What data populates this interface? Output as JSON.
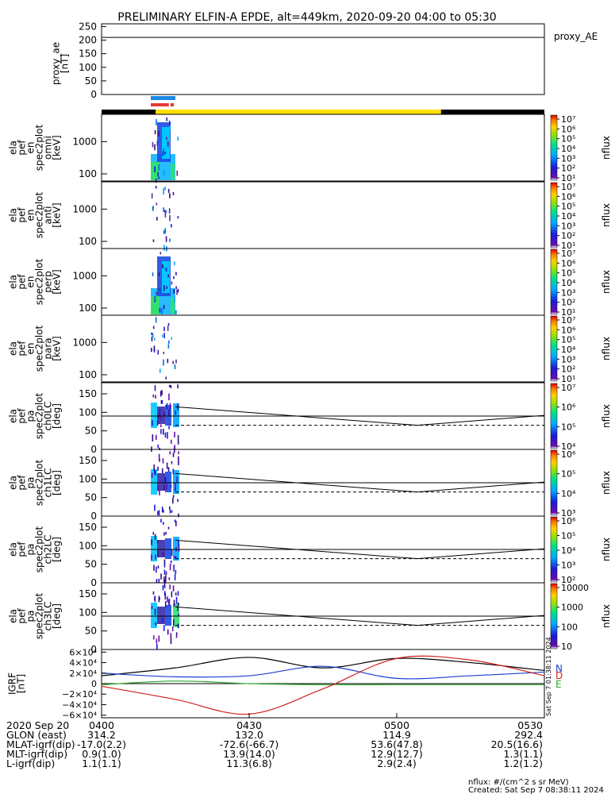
{
  "title": "PRELIMINARY ELFIN-A EPDE, alt=449km, 2020-09-20 04:00 to 05:30",
  "colors": {
    "black": "#000000",
    "yellow": "#ffe000",
    "blue_bar": "#1e88e5",
    "red_bar": "#e53935",
    "grf_x": "#1f3fd0",
    "grf_y": "#2ca82c",
    "grf_z": "#d02020"
  },
  "panels": {
    "proxy_ae": {
      "ylabel": [
        "proxy_ae",
        "[nT]"
      ],
      "legend": "proxy_AE",
      "yticks": [
        "250",
        "200",
        "150",
        "100",
        "50",
        "0"
      ]
    },
    "spec_energy": [
      {
        "ylabel": [
          "ela",
          "pef",
          "en",
          "spec2plot",
          "omni",
          "[keV]"
        ],
        "yticks": [
          "1000",
          "100"
        ]
      },
      {
        "ylabel": [
          "ela",
          "pef",
          "en",
          "spec2plot",
          "anti",
          "[keV]"
        ],
        "yticks": [
          "1000",
          "100"
        ]
      },
      {
        "ylabel": [
          "ela",
          "pef",
          "en",
          "spec2plot",
          "perp",
          "[keV]"
        ],
        "yticks": [
          "1000",
          "100"
        ]
      },
      {
        "ylabel": [
          "ela",
          "pef",
          "en",
          "spec2plot",
          "para",
          "[keV]"
        ],
        "yticks": [
          "1000",
          "100"
        ]
      }
    ],
    "spec_pitch": [
      {
        "ylabel": [
          "ela",
          "pef",
          "pa",
          "spec2plot",
          "ch0LC",
          "[deg]"
        ],
        "yticks": [
          "150",
          "100",
          "50",
          "0"
        ]
      },
      {
        "ylabel": [
          "ela",
          "pef",
          "pa",
          "spec2plot",
          "ch1LC",
          "[deg]"
        ],
        "yticks": [
          "150",
          "100",
          "50",
          "0"
        ]
      },
      {
        "ylabel": [
          "ela",
          "pef",
          "pa",
          "spec2plot",
          "ch2LC",
          "[deg]"
        ],
        "yticks": [
          "150",
          "100",
          "50",
          "0"
        ]
      },
      {
        "ylabel": [
          "ela",
          "pef",
          "pa",
          "spec2plot",
          "ch3LC",
          "[deg]"
        ],
        "yticks": [
          "150",
          "100",
          "50",
          "0"
        ]
      }
    ],
    "colorbars": [
      {
        "label": "nflux",
        "ticks": [
          "10⁷",
          "10⁶",
          "10⁵",
          "10⁴",
          "10³",
          "10²",
          "10¹"
        ]
      },
      {
        "label": "nflux",
        "ticks": [
          "10⁷",
          "10⁶",
          "10⁵",
          "10⁴",
          "10³",
          "10²",
          "10¹"
        ]
      },
      {
        "label": "nflux",
        "ticks": [
          "10⁷",
          "10⁶",
          "10⁵",
          "10⁴",
          "10³",
          "10²",
          "10¹"
        ]
      },
      {
        "label": "nflux",
        "ticks": [
          "10⁷",
          "10⁶",
          "10⁵",
          "10⁴",
          "10³",
          "10²",
          "10¹"
        ]
      },
      {
        "label": "nflux",
        "ticks": [
          "10⁷",
          "10⁶",
          "10⁵",
          "10⁴"
        ]
      },
      {
        "label": "nflux",
        "ticks": [
          "10⁶",
          "10⁵",
          "10⁴",
          "10³"
        ]
      },
      {
        "label": "nflux",
        "ticks": [
          "10⁶",
          "10⁵",
          "10⁴",
          "10³",
          "10²"
        ]
      },
      {
        "label": "nflux",
        "ticks": [
          "10000",
          "1000",
          "100",
          "10"
        ]
      }
    ],
    "grf": {
      "ylabel": [
        "IGRF",
        "[nT]"
      ],
      "yticks": [
        "6×10⁴",
        "4×10⁴",
        "2×10⁴",
        "0",
        "−2×10⁴",
        "−4×10⁴",
        "−6×10⁴"
      ],
      "side_label": "Sat Sep  7 01:38:11 2024",
      "comp_labels": [
        "N",
        "D",
        "E"
      ]
    }
  },
  "footer": {
    "rows": [
      {
        "label": "2020 Sep 20",
        "values": [
          "0400",
          "0430",
          "0500",
          "0530"
        ]
      },
      {
        "label": "GLON (east)",
        "values": [
          "314.2",
          "132.0",
          "114.9",
          "292.4"
        ]
      },
      {
        "label": "MLAT-igrf(dip)",
        "values": [
          "-17.0(2.2)",
          "-72.6(-66.7)",
          "53.6(47.8)",
          "20.5(16.6)"
        ]
      },
      {
        "label": "MLT-igrf(dip)",
        "values": [
          "0.9(1.0)",
          "13.9(14.0)",
          "12.9(12.7)",
          "1.3(1.1)"
        ]
      },
      {
        "label": "L-igrf(dip)",
        "values": [
          "1.1(1.1)",
          "11.3(6.8)",
          "2.9(2.4)",
          "1.2(1.2)"
        ]
      }
    ],
    "units_note": "nflux: #/(cm^2 s sr MeV)",
    "created": "Created: Sat Sep  7 08:38:11 2024"
  },
  "chart_data": {
    "type": "heatmap",
    "time_range": [
      "2020-09-20 04:00",
      "2020-09-20 05:30"
    ],
    "x_ticks": [
      "0400",
      "0430",
      "0500",
      "0530"
    ],
    "proxy_ae": {
      "ylim": [
        0,
        260
      ],
      "values_nT": [
        210,
        210,
        210,
        210
      ]
    },
    "state_bar": {
      "segments": [
        {
          "start": "04:00",
          "end": "04:11",
          "color": "black"
        },
        {
          "start": "04:11",
          "end": "05:09",
          "color": "yellow"
        },
        {
          "start": "05:09",
          "end": "05:30",
          "color": "black"
        }
      ]
    },
    "science_bars": {
      "blue": [
        [
          "04:10",
          "04:15"
        ]
      ],
      "red": [
        [
          "04:10",
          "04:14"
        ],
        [
          "04:14",
          "04:15"
        ]
      ]
    },
    "energy_spectra": {
      "ylim_keV": [
        60,
        7000
      ],
      "log_y": true,
      "active_interval": [
        "04:10",
        "04:15"
      ]
    },
    "pitch_angle_spectra": {
      "ylim_deg": [
        0,
        180
      ],
      "horizontal_line_deg": 90,
      "loss_cone_solid_deg": [
        [
          4.25,
          115
        ],
        [
          5.07,
          65
        ],
        [
          5.5,
          92
        ]
      ],
      "loss_cone_dashed_deg": [
        [
          4.25,
          65
        ],
        [
          5.07,
          65
        ],
        [
          5.5,
          65
        ]
      ]
    },
    "igrf": {
      "ylim_nT": [
        -65000,
        65000
      ],
      "series": [
        {
          "name": "N",
          "color": "black",
          "x_hours": [
            4.0,
            4.25,
            4.5,
            4.75,
            5.0,
            5.25,
            5.5
          ],
          "values_nT": [
            15000,
            30000,
            50000,
            30000,
            48000,
            40000,
            25000
          ]
        },
        {
          "name": "N",
          "color": "blue",
          "x_hours": [
            4.0,
            4.25,
            4.5,
            4.75,
            5.0,
            5.25,
            5.5
          ],
          "values_nT": [
            20000,
            13000,
            15000,
            33000,
            10000,
            15000,
            22000
          ]
        },
        {
          "name": "E",
          "color": "green",
          "x_hours": [
            4.0,
            4.25,
            4.5,
            4.75,
            5.0,
            5.25,
            5.5
          ],
          "values_nT": [
            -2000,
            5000,
            0,
            -2000,
            -2000,
            -2000,
            -2000
          ]
        },
        {
          "name": "D",
          "color": "red",
          "x_hours": [
            4.0,
            4.25,
            4.5,
            4.75,
            5.0,
            5.25,
            5.5
          ],
          "values_nT": [
            -5000,
            -30000,
            -58000,
            -10000,
            48000,
            45000,
            15000
          ]
        }
      ]
    }
  }
}
